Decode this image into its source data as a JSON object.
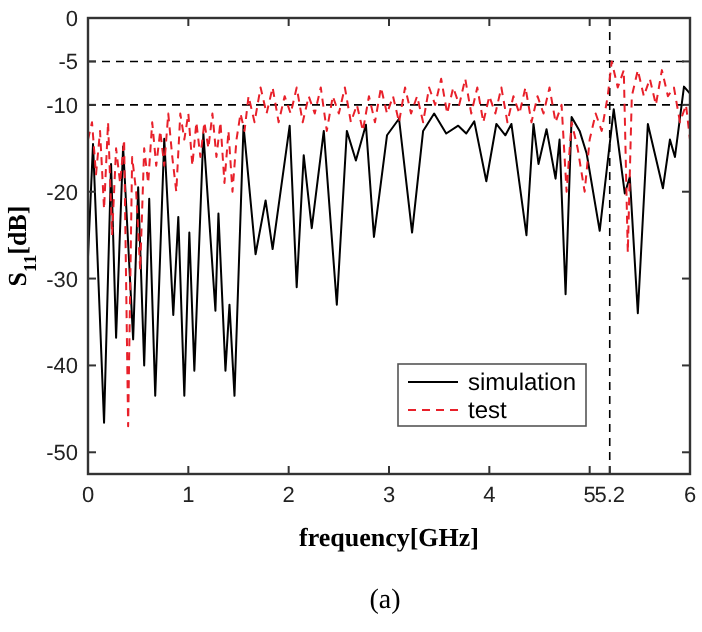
{
  "chart_data": {
    "type": "line",
    "xlabel": "frequency[GHz]",
    "ylabel": "S$_{11}$[dB]",
    "annotations": [
      "(a)"
    ],
    "xlim": [
      0,
      6
    ],
    "ylim": [
      -52.5,
      0
    ],
    "xticks": [
      0,
      1,
      2,
      3,
      4,
      5,
      5.2,
      6
    ],
    "yticks": [
      0,
      -5,
      -10,
      -20,
      -30,
      -40,
      -50
    ],
    "grid": false,
    "legend": "bottom right",
    "ref_lines": [
      {
        "axis": "y",
        "value": -5,
        "color": "#000000",
        "line_style": "dashed"
      },
      {
        "axis": "y",
        "value": -10,
        "color": "#000000",
        "line_style": "dashed"
      },
      {
        "axis": "x",
        "value": 5.2,
        "color": "#000000",
        "line_style": "dashed"
      }
    ],
    "series": [
      {
        "name": "simulation",
        "color": "#000000",
        "line_style": "solid",
        "x": [
          0,
          0.05,
          0.16,
          0.23,
          0.28,
          0.35,
          0.45,
          0.5,
          0.56,
          0.61,
          0.67,
          0.76,
          0.85,
          0.9,
          0.96,
          1.01,
          1.06,
          1.15,
          1.27,
          1.3,
          1.37,
          1.41,
          1.46,
          1.55,
          1.67,
          1.77,
          1.84,
          2.01,
          2.08,
          2.15,
          2.23,
          2.35,
          2.48,
          2.58,
          2.67,
          2.77,
          2.85,
          2.98,
          3.1,
          3.23,
          3.34,
          3.45,
          3.57,
          3.69,
          3.77,
          3.85,
          3.97,
          4.07,
          4.16,
          4.22,
          4.37,
          4.44,
          4.49,
          4.57,
          4.66,
          4.7,
          4.76,
          4.82,
          4.9,
          4.97,
          5.1,
          5.24,
          5.35,
          5.4,
          5.48,
          5.58,
          5.73,
          5.8,
          5.85,
          5.94,
          6.0
        ],
        "values": [
          -27.5,
          -14.5,
          -46.6,
          -16.8,
          -36.8,
          -14.8,
          -37,
          -19.5,
          -40,
          -20.8,
          -43.5,
          -13.9,
          -34.2,
          -22.9,
          -43.5,
          -24.7,
          -40.6,
          -13.3,
          -33.7,
          -22.5,
          -40.6,
          -33,
          -43.5,
          -12.4,
          -27.2,
          -21,
          -26.6,
          -12.4,
          -31,
          -15.8,
          -24.2,
          -13,
          -33,
          -13,
          -16.4,
          -12.3,
          -25.2,
          -13.5,
          -11.6,
          -24.7,
          -13,
          -11,
          -13.3,
          -12.4,
          -13.3,
          -11.9,
          -18.8,
          -12.2,
          -13.5,
          -12.2,
          -25,
          -12.2,
          -16.8,
          -12.8,
          -18.5,
          -14,
          -31.8,
          -11.4,
          -13,
          -15.6,
          -24.5,
          -10.5,
          -20.2,
          -18.3,
          -34,
          -12.2,
          -19.6,
          -14,
          -16,
          -7.9,
          -8.7
        ]
      },
      {
        "name": "test",
        "color": "#e8202a",
        "line_style": "dashed",
        "x": [
          0,
          0.04,
          0.08,
          0.12,
          0.16,
          0.2,
          0.24,
          0.28,
          0.32,
          0.36,
          0.4,
          0.44,
          0.48,
          0.52,
          0.56,
          0.6,
          0.64,
          0.68,
          0.72,
          0.76,
          0.8,
          0.84,
          0.88,
          0.92,
          0.96,
          1.0,
          1.04,
          1.08,
          1.12,
          1.16,
          1.2,
          1.24,
          1.28,
          1.32,
          1.36,
          1.4,
          1.44,
          1.48,
          1.52,
          1.56,
          1.6,
          1.66,
          1.72,
          1.78,
          1.84,
          1.9,
          1.96,
          2.02,
          2.08,
          2.14,
          2.2,
          2.26,
          2.32,
          2.38,
          2.44,
          2.5,
          2.56,
          2.62,
          2.68,
          2.74,
          2.8,
          2.86,
          2.92,
          2.98,
          3.04,
          3.1,
          3.16,
          3.22,
          3.28,
          3.34,
          3.4,
          3.46,
          3.52,
          3.58,
          3.64,
          3.7,
          3.76,
          3.82,
          3.88,
          3.94,
          4.0,
          4.06,
          4.12,
          4.18,
          4.24,
          4.3,
          4.36,
          4.42,
          4.48,
          4.54,
          4.6,
          4.66,
          4.72,
          4.77,
          4.82,
          4.88,
          4.95,
          5.0,
          5.06,
          5.12,
          5.18,
          5.22,
          5.28,
          5.34,
          5.38,
          5.42,
          5.48,
          5.54,
          5.6,
          5.66,
          5.72,
          5.78,
          5.84,
          5.9,
          5.96,
          6.0
        ],
        "values": [
          -14,
          -12,
          -18,
          -13,
          -22,
          -12,
          -25,
          -15,
          -19,
          -14,
          -47,
          -16,
          -20,
          -29,
          -15,
          -19,
          -12,
          -17,
          -13,
          -17,
          -11,
          -16,
          -20,
          -11,
          -14,
          -11,
          -17,
          -12,
          -16,
          -12,
          -15,
          -11,
          -16,
          -12,
          -19,
          -13,
          -20,
          -14,
          -11,
          -13,
          -9,
          -12,
          -8,
          -11,
          -8,
          -12,
          -9,
          -11,
          -8,
          -12,
          -9,
          -11,
          -8,
          -13,
          -9,
          -11,
          -8,
          -12,
          -10,
          -13,
          -9,
          -12,
          -8,
          -11,
          -9,
          -12,
          -8,
          -11,
          -9,
          -12,
          -8,
          -10,
          -7,
          -11,
          -8,
          -10,
          -7,
          -11,
          -8,
          -12,
          -9,
          -11,
          -8,
          -12,
          -9,
          -11,
          -8,
          -12,
          -9,
          -11,
          -8,
          -12,
          -10,
          -20,
          -12,
          -15,
          -20,
          -14,
          -11,
          -13,
          -9,
          -5,
          -8,
          -6,
          -27,
          -9,
          -6,
          -9,
          -7,
          -10,
          -6,
          -9,
          -8,
          -12,
          -10,
          -14
        ]
      }
    ]
  }
}
